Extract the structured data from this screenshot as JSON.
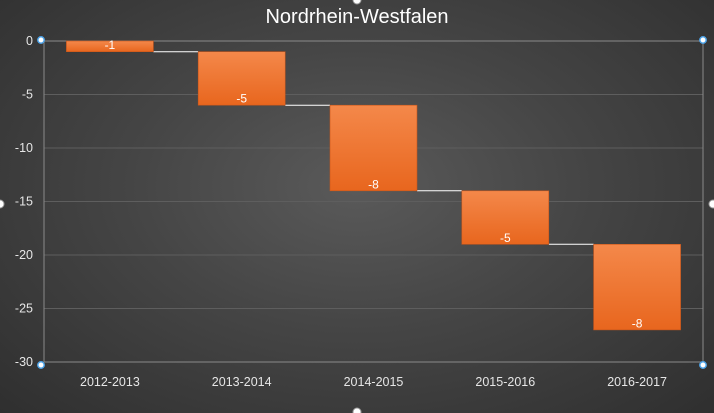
{
  "chart_data": {
    "type": "bar",
    "subtype": "waterfall",
    "title": "Nordrhein-Westfalen",
    "xlabel": "",
    "ylabel": "",
    "categories": [
      "2012-2013",
      "2013-2014",
      "2014-2015",
      "2015-2016",
      "2016-2017"
    ],
    "values": [
      -1,
      -5,
      -8,
      -5,
      -8
    ],
    "data_labels": [
      "-1",
      "-5",
      "-8",
      "-5",
      "-8"
    ],
    "cumulative": [
      -1,
      -6,
      -14,
      -19,
      -27
    ],
    "ylim": [
      -30,
      0
    ],
    "yticks": [
      0,
      -5,
      -10,
      -15,
      -20,
      -25,
      -30
    ],
    "grid": true,
    "legend": "none",
    "bar_color_top": "#f4884a",
    "bar_color_bottom": "#e8661e",
    "background_color": "#474747",
    "connector_color": "#ffffff"
  }
}
